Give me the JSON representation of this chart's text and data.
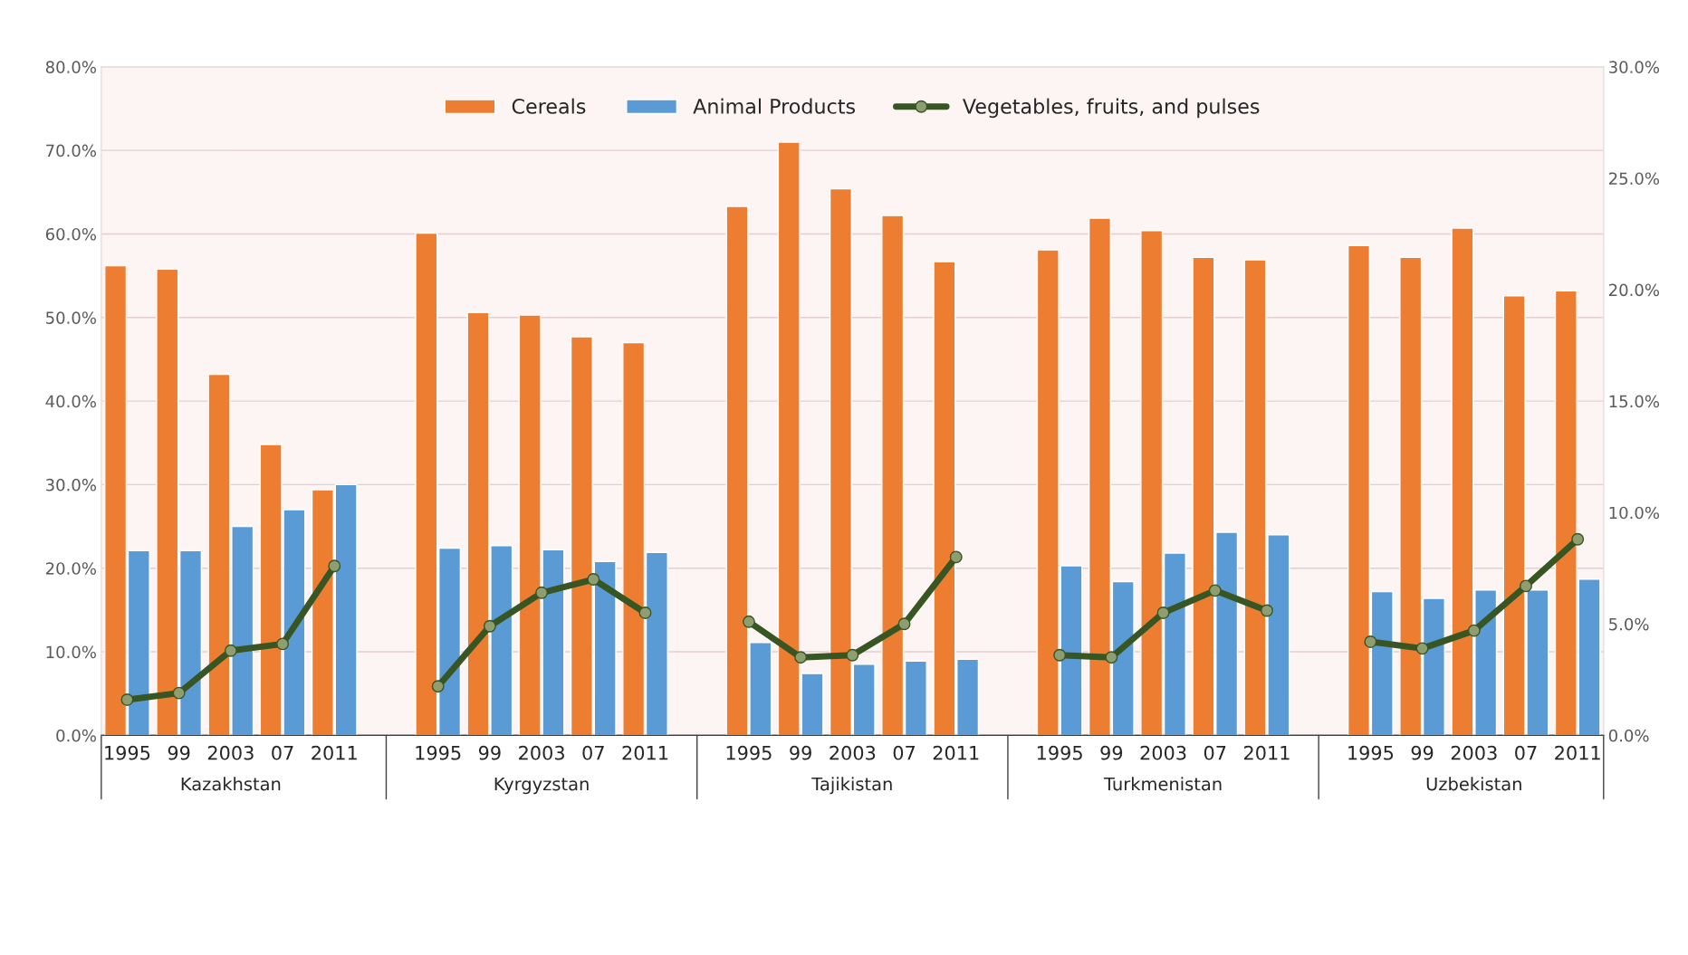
{
  "chart_data": {
    "type": "bar",
    "categories": [
      "1995",
      "99",
      "2003",
      "07",
      "2011",
      null,
      "1995",
      "99",
      "2003",
      "07",
      "2011",
      null,
      "1995",
      "99",
      "2003",
      "07",
      "2011",
      null,
      "1995",
      "99",
      "2003",
      "07",
      "2011",
      null,
      "1995",
      "99",
      "2003",
      "07",
      "2011"
    ],
    "series": [
      {
        "name": "Cereals",
        "color": "#ed7d31",
        "values": [
          56.2,
          55.8,
          43.2,
          34.8,
          29.4,
          null,
          60.1,
          50.6,
          50.3,
          47.7,
          47.0,
          null,
          63.3,
          71.0,
          65.4,
          62.2,
          56.7,
          null,
          58.1,
          61.9,
          60.4,
          57.2,
          56.9,
          null,
          58.6,
          57.2,
          60.7,
          52.6,
          53.2
        ]
      },
      {
        "name": "Animal Products",
        "color": "#5b9bd5",
        "values": [
          22.1,
          22.1,
          25.0,
          27.0,
          30.0,
          null,
          22.4,
          22.7,
          22.2,
          20.8,
          21.9,
          null,
          11.1,
          7.4,
          8.5,
          8.9,
          9.1,
          null,
          20.3,
          18.4,
          21.8,
          24.3,
          24.0,
          null,
          17.2,
          16.4,
          17.4,
          17.4,
          18.7
        ]
      },
      {
        "name": "Vegetables, fruits, and pulses",
        "type": "line",
        "axis": "y2",
        "color": "#375623",
        "marker": "circle",
        "values": [
          1.6,
          1.9,
          3.8,
          4.1,
          7.6,
          null,
          2.2,
          4.9,
          6.4,
          7.0,
          5.5,
          null,
          5.1,
          3.5,
          3.6,
          5.0,
          8.0,
          null,
          3.6,
          3.5,
          5.5,
          6.5,
          5.6,
          null,
          4.2,
          3.9,
          4.7,
          6.7,
          8.8
        ]
      }
    ],
    "ylim": [
      0,
      80
    ],
    "yticks": [
      {
        "value": 0,
        "label": "0.0%"
      },
      {
        "value": 10,
        "label": "10.0%"
      },
      {
        "value": 20,
        "label": "20.0%"
      },
      {
        "value": 30,
        "label": "30.0%"
      },
      {
        "value": 40,
        "label": "40.0%"
      },
      {
        "value": 50,
        "label": "50.0%"
      },
      {
        "value": 60,
        "label": "60.0%"
      },
      {
        "value": 70,
        "label": "70.0%"
      },
      {
        "value": 80,
        "label": "80.0%"
      }
    ],
    "y2lim": [
      0,
      30
    ],
    "y2ticks": [
      {
        "value": 0,
        "label": "0.0%"
      },
      {
        "value": 5,
        "label": "5.0%"
      },
      {
        "value": 10,
        "label": "10.0%"
      },
      {
        "value": 15,
        "label": "15.0%"
      },
      {
        "value": 20,
        "label": "20.0%"
      },
      {
        "value": 25,
        "label": "25.0%"
      },
      {
        "value": 30,
        "label": "30.0%"
      }
    ],
    "annotations": [
      "Kazakhstan",
      "Kyrgyzstan",
      "Tajikistan",
      "Turkmenistan",
      "Uzbekistan"
    ],
    "grid": "y",
    "legend": "top"
  }
}
